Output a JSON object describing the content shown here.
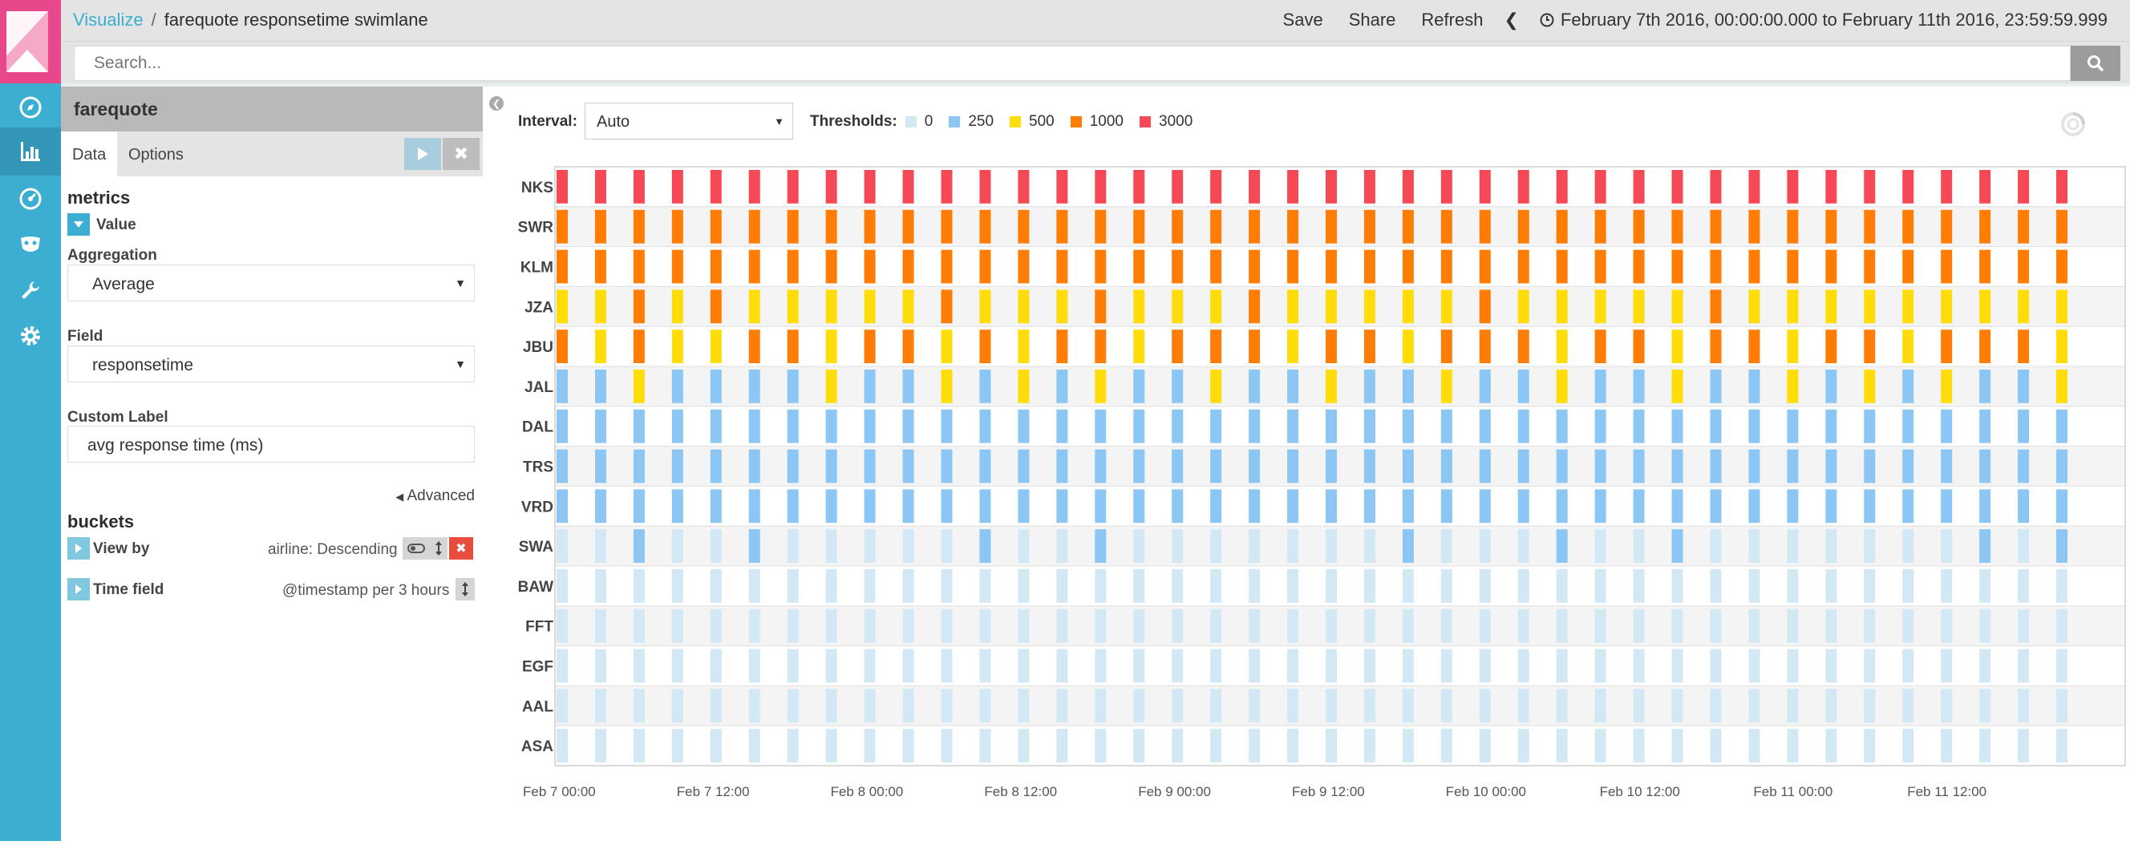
{
  "topbar": {
    "breadcrumb_root": "Visualize",
    "breadcrumb_separator": "/",
    "breadcrumb_current": "farequote responsetime swimlane",
    "save_label": "Save",
    "share_label": "Share",
    "refresh_label": "Refresh",
    "time_range": "February 7th 2016, 00:00:00.000 to February 11th 2016, 23:59:59.999"
  },
  "search": {
    "placeholder": "Search..."
  },
  "sidebar": {
    "index_pattern": "farequote",
    "tabs": [
      {
        "label": "Data"
      },
      {
        "label": "Options"
      }
    ],
    "metrics_title": "metrics",
    "metric_name": "Value",
    "aggregation_label": "Aggregation",
    "aggregation_value": "Average",
    "field_label": "Field",
    "field_value": "responsetime",
    "custom_label_label": "Custom Label",
    "custom_label_value": "avg response time (ms)",
    "advanced_label": "Advanced",
    "buckets_title": "buckets",
    "view_by_label": "View by",
    "view_by_desc": "airline: Descending",
    "time_field_label": "Time field",
    "time_field_desc": "@timestamp per 3 hours"
  },
  "vis": {
    "interval_label": "Interval:",
    "interval_value": "Auto",
    "thresholds_label": "Thresholds:",
    "thresholds": [
      {
        "value": "0",
        "color": "#d2e8f5"
      },
      {
        "value": "250",
        "color": "#8cc6f5"
      },
      {
        "value": "500",
        "color": "#ffdc0a"
      },
      {
        "value": "1000",
        "color": "#ff7d05"
      },
      {
        "value": "3000",
        "color": "#f54a55"
      }
    ]
  },
  "colors": {
    "nav": "#3caed2",
    "logo": "#e8488b",
    "accent": "#3caed2"
  },
  "chart_data": {
    "type": "heatmap",
    "x_start": "2016-02-07T00:00",
    "x_end": "2016-02-12T00:00",
    "x_ticks": [
      "Feb 7 00:00",
      "Feb 7 12:00",
      "Feb 8 00:00",
      "Feb 8 12:00",
      "Feb 9 00:00",
      "Feb 9 12:00",
      "Feb 10 00:00",
      "Feb 10 12:00",
      "Feb 11 00:00",
      "Feb 11 12:00"
    ],
    "x_tick_times": [
      "2016-02-07T00:00",
      "2016-02-07T12:00",
      "2016-02-08T00:00",
      "2016-02-08T12:00",
      "2016-02-09T00:00",
      "2016-02-09T12:00",
      "2016-02-10T00:00",
      "2016-02-10T12:00",
      "2016-02-11T00:00",
      "2016-02-11T12:00"
    ],
    "interval": "3 hours",
    "lanes": [
      "NKS",
      "SWR",
      "KLM",
      "JZA",
      "JBU",
      "JAL",
      "DAL",
      "TRS",
      "VRD",
      "SWA",
      "BAW",
      "FFT",
      "EGF",
      "AAL",
      "ASA"
    ],
    "lane_thresholds": [
      3000,
      1000,
      1000,
      1000,
      1000,
      250,
      250,
      250,
      250,
      0,
      0,
      0,
      0,
      0,
      0
    ],
    "lane_patterns": {
      "JZA": "500,500,1000,500,1000,500,500,500,500,500,1000,500,500,500,1000,500,500,500,1000,500,500,500,500,500,1000,500,500,500,500,500,1000,500,500,500,500,500,500,500,500,500",
      "JBU": "1000,500,1000,500,500,1000,1000,500,1000,1000,500,1000,500,1000,1000,500,1000,1000,1000,500,1000,1000,500,1000,1000,1000,500,1000,1000,500,1000,1000,500,1000,1000,500,1000,1000,1000,500",
      "JAL": "250,250,500,250,250,250,250,500,250,250,500,250,500,250,500,250,250,500,250,250,500,250,250,500,250,250,500,250,250,500,250,250,500,250,500,250,500,250,250,500",
      "SWA": "0,0,250,0,0,250,0,0,0,0,0,250,0,0,250,0,0,0,0,0,0,0,250,0,0,0,250,0,0,250,0,0,0,0,0,0,0,250,0,250"
    }
  }
}
